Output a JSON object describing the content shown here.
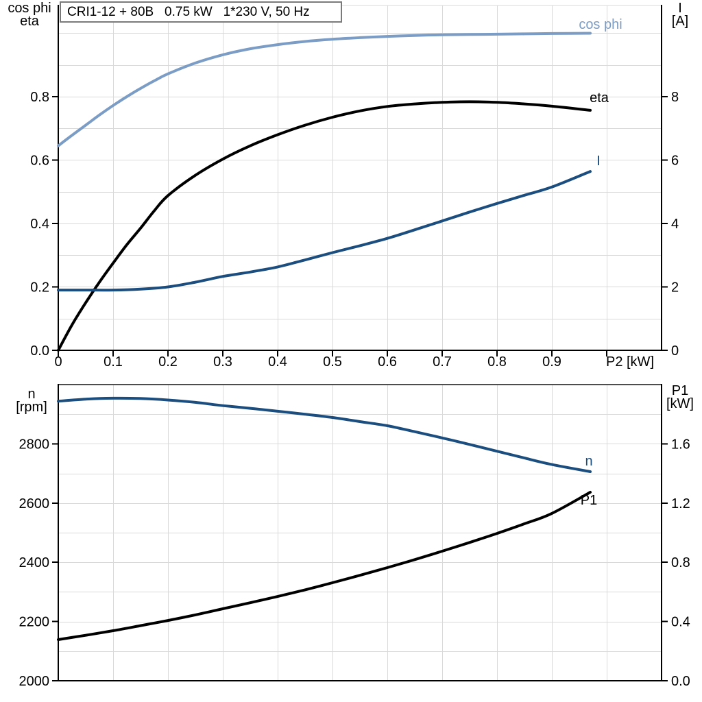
{
  "chart_data": [
    {
      "type": "line",
      "title": "CRI1-12 + 80B   0.75 kW   1*230 V, 50 Hz",
      "x_axis": {
        "label": "P2 [kW]",
        "range": [
          0,
          1.1
        ],
        "grid_step": 0.1,
        "ticks": [
          {
            "v": 0,
            "t": "0"
          },
          {
            "v": 0.1,
            "t": "0.1"
          },
          {
            "v": 0.2,
            "t": "0.2"
          },
          {
            "v": 0.3,
            "t": "0.3"
          },
          {
            "v": 0.4,
            "t": "0.4"
          },
          {
            "v": 0.5,
            "t": "0.5"
          },
          {
            "v": 0.6,
            "t": "0.6"
          },
          {
            "v": 0.7,
            "t": "0.7"
          },
          {
            "v": 0.8,
            "t": "0.8"
          },
          {
            "v": 0.9,
            "t": "0.9"
          }
        ]
      },
      "left_axis": {
        "header": [
          "cos phi",
          "eta"
        ],
        "range": [
          0,
          1.0875
        ],
        "grid_step": 0.1,
        "ticks": [
          {
            "v": 0.0,
            "t": "0.0"
          },
          {
            "v": 0.2,
            "t": "0.2"
          },
          {
            "v": 0.4,
            "t": "0.4"
          },
          {
            "v": 0.6,
            "t": "0.6"
          },
          {
            "v": 0.8,
            "t": "0.8"
          }
        ]
      },
      "right_axis": {
        "header": [
          "I",
          "[A]"
        ],
        "range": [
          0,
          10.875
        ],
        "ticks": [
          {
            "v": 0,
            "t": "0"
          },
          {
            "v": 2,
            "t": "2"
          },
          {
            "v": 4,
            "t": "4"
          },
          {
            "v": 6,
            "t": "6"
          },
          {
            "v": 8,
            "t": "8"
          }
        ]
      },
      "series": [
        {
          "name": "cos phi",
          "axis": "left",
          "color": "#7B9CC4",
          "points": [
            [
              0,
              0.645
            ],
            [
              0.025,
              0.678
            ],
            [
              0.05,
              0.71
            ],
            [
              0.075,
              0.742
            ],
            [
              0.1,
              0.772
            ],
            [
              0.125,
              0.8
            ],
            [
              0.15,
              0.826
            ],
            [
              0.175,
              0.85
            ],
            [
              0.2,
              0.872
            ],
            [
              0.25,
              0.906
            ],
            [
              0.3,
              0.932
            ],
            [
              0.35,
              0.951
            ],
            [
              0.4,
              0.964
            ],
            [
              0.45,
              0.974
            ],
            [
              0.5,
              0.981
            ],
            [
              0.55,
              0.986
            ],
            [
              0.6,
              0.99
            ],
            [
              0.65,
              0.993
            ],
            [
              0.7,
              0.995
            ],
            [
              0.75,
              0.996
            ],
            [
              0.8,
              0.997
            ],
            [
              0.85,
              0.998
            ],
            [
              0.9,
              0.999
            ],
            [
              0.97,
              1.0
            ]
          ]
        },
        {
          "name": "eta",
          "axis": "left",
          "color": "#000000",
          "points": [
            [
              0,
              0
            ],
            [
              0.025,
              0.08
            ],
            [
              0.05,
              0.15
            ],
            [
              0.075,
              0.215
            ],
            [
              0.1,
              0.275
            ],
            [
              0.125,
              0.333
            ],
            [
              0.15,
              0.385
            ],
            [
              0.175,
              0.44
            ],
            [
              0.2,
              0.488
            ],
            [
              0.25,
              0.552
            ],
            [
              0.3,
              0.603
            ],
            [
              0.35,
              0.645
            ],
            [
              0.4,
              0.68
            ],
            [
              0.45,
              0.71
            ],
            [
              0.5,
              0.735
            ],
            [
              0.55,
              0.755
            ],
            [
              0.6,
              0.769
            ],
            [
              0.65,
              0.777
            ],
            [
              0.7,
              0.782
            ],
            [
              0.75,
              0.784
            ],
            [
              0.8,
              0.782
            ],
            [
              0.85,
              0.777
            ],
            [
              0.9,
              0.77
            ],
            [
              0.97,
              0.757
            ]
          ]
        },
        {
          "name": "I",
          "axis": "right",
          "color": "#1B4D7E",
          "points": [
            [
              0,
              1.9
            ],
            [
              0.05,
              1.9
            ],
            [
              0.1,
              1.9
            ],
            [
              0.15,
              1.93
            ],
            [
              0.2,
              2.0
            ],
            [
              0.25,
              2.15
            ],
            [
              0.3,
              2.33
            ],
            [
              0.35,
              2.47
            ],
            [
              0.4,
              2.63
            ],
            [
              0.45,
              2.85
            ],
            [
              0.5,
              3.08
            ],
            [
              0.55,
              3.3
            ],
            [
              0.6,
              3.53
            ],
            [
              0.65,
              3.8
            ],
            [
              0.7,
              4.08
            ],
            [
              0.75,
              4.36
            ],
            [
              0.8,
              4.63
            ],
            [
              0.85,
              4.89
            ],
            [
              0.9,
              5.15
            ],
            [
              0.97,
              5.64
            ]
          ]
        }
      ]
    },
    {
      "type": "line",
      "title": "",
      "x_axis": {
        "label": "",
        "range": [
          0,
          1.1
        ],
        "grid_step": 0.1,
        "ticks": []
      },
      "left_axis": {
        "header": [
          "n",
          "[rpm]"
        ],
        "range": [
          2000,
          3000
        ],
        "grid_step": 100,
        "ticks": [
          {
            "v": 2000,
            "t": "2000"
          },
          {
            "v": 2200,
            "t": "2200"
          },
          {
            "v": 2400,
            "t": "2400"
          },
          {
            "v": 2600,
            "t": "2600"
          },
          {
            "v": 2800,
            "t": "2800"
          }
        ]
      },
      "right_axis": {
        "header": [
          "P1",
          "[kW]"
        ],
        "range": [
          0,
          2.0
        ],
        "ticks": [
          {
            "v": 0.0,
            "t": "0.0"
          },
          {
            "v": 0.4,
            "t": "0.4"
          },
          {
            "v": 0.8,
            "t": "0.8"
          },
          {
            "v": 1.2,
            "t": "1.2"
          },
          {
            "v": 1.6,
            "t": "1.6"
          }
        ]
      },
      "series": [
        {
          "name": "n",
          "axis": "left",
          "color": "#1B4D7E",
          "points": [
            [
              0,
              2944
            ],
            [
              0.05,
              2951
            ],
            [
              0.1,
              2954
            ],
            [
              0.15,
              2953
            ],
            [
              0.2,
              2948
            ],
            [
              0.25,
              2940
            ],
            [
              0.3,
              2929
            ],
            [
              0.35,
              2920
            ],
            [
              0.4,
              2910
            ],
            [
              0.45,
              2900
            ],
            [
              0.5,
              2889
            ],
            [
              0.55,
              2875
            ],
            [
              0.6,
              2861
            ],
            [
              0.65,
              2841
            ],
            [
              0.7,
              2820
            ],
            [
              0.75,
              2798
            ],
            [
              0.8,
              2775
            ],
            [
              0.85,
              2752
            ],
            [
              0.9,
              2730
            ],
            [
              0.97,
              2706
            ]
          ]
        },
        {
          "name": "P1",
          "axis": "right",
          "color": "#000000",
          "points": [
            [
              0,
              0.278
            ],
            [
              0.05,
              0.307
            ],
            [
              0.1,
              0.338
            ],
            [
              0.15,
              0.372
            ],
            [
              0.2,
              0.407
            ],
            [
              0.25,
              0.445
            ],
            [
              0.3,
              0.486
            ],
            [
              0.35,
              0.527
            ],
            [
              0.4,
              0.569
            ],
            [
              0.45,
              0.614
            ],
            [
              0.5,
              0.662
            ],
            [
              0.55,
              0.712
            ],
            [
              0.6,
              0.764
            ],
            [
              0.65,
              0.818
            ],
            [
              0.7,
              0.875
            ],
            [
              0.75,
              0.934
            ],
            [
              0.8,
              0.995
            ],
            [
              0.85,
              1.06
            ],
            [
              0.9,
              1.13
            ],
            [
              0.97,
              1.273
            ]
          ]
        }
      ]
    }
  ]
}
